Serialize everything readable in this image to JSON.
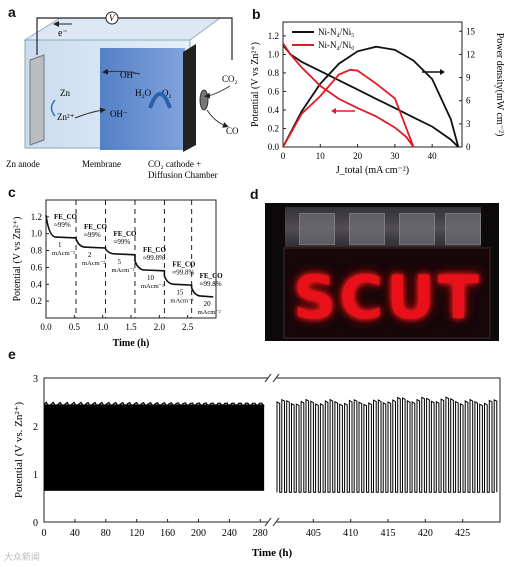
{
  "panels": {
    "a": "a",
    "b": "b",
    "c": "c",
    "d": "d",
    "e": "e"
  },
  "schematic": {
    "electron": "e⁻",
    "voltmeter": "V",
    "zn": "Zn",
    "zn2": "Zn²⁺",
    "oh_top": "OH⁻",
    "oh_mid": "OH⁻",
    "h2o": "H₂O",
    "o2": "O₂",
    "co2": "CO₂",
    "co": "CO",
    "zn_anode": "Zn anode",
    "membrane": "Membrane",
    "cathode_line1": "CO₂ cathode +",
    "cathode_line2": "Diffusion Chamber"
  },
  "photo": {
    "word": "SCUT"
  },
  "watermark": "大众新闻",
  "chart_data": [
    {
      "id": "b",
      "type": "line",
      "xlabel": "J_total (mA cm⁻²)",
      "ylabel": "Potential (V vs Zn²⁺)",
      "ylabel_right": "Power density(mW cm⁻²)",
      "xlim": [
        0,
        48
      ],
      "ylim": [
        0,
        1.35
      ],
      "ylim_right": [
        0,
        16.2
      ],
      "xticks": [
        0,
        10,
        20,
        30,
        40
      ],
      "yticks": [
        0.0,
        0.2,
        0.4,
        0.6,
        0.8,
        1.0,
        1.2
      ],
      "yticks_right": [
        0,
        3,
        6,
        9,
        12,
        15
      ],
      "legend": "top-left",
      "series": [
        {
          "name": "Ni-N₄/Ni₅",
          "color": "#111111",
          "axis": "left",
          "x": [
            0,
            2,
            5,
            10,
            15,
            20,
            25,
            30,
            35,
            40,
            45,
            47
          ],
          "y": [
            1.1,
            1.0,
            0.92,
            0.82,
            0.72,
            0.62,
            0.52,
            0.42,
            0.32,
            0.22,
            0.08,
            0.0
          ]
        },
        {
          "name": "Ni-N₄/Ni₅",
          "color": "#111111",
          "axis": "right",
          "x": [
            0,
            5,
            10,
            15,
            20,
            25,
            30,
            35,
            40,
            45,
            47
          ],
          "y": [
            0,
            4.6,
            8.2,
            10.8,
            12.4,
            13.0,
            12.6,
            11.2,
            8.8,
            3.6,
            0
          ]
        },
        {
          "name": "Ni-N₄/Ni₀",
          "color": "#e01b24",
          "axis": "left",
          "x": [
            0,
            2,
            5,
            10,
            15,
            20,
            25,
            30,
            33,
            35
          ],
          "y": [
            1.12,
            1.0,
            0.86,
            0.66,
            0.52,
            0.42,
            0.33,
            0.21,
            0.11,
            0.0
          ]
        },
        {
          "name": "Ni-N₄/Ni₀",
          "color": "#e01b24",
          "axis": "right",
          "x": [
            0,
            5,
            10,
            15,
            18,
            20,
            25,
            30,
            35
          ],
          "y": [
            0,
            4.3,
            6.6,
            9.4,
            10.0,
            9.9,
            8.2,
            6.3,
            0
          ]
        }
      ]
    },
    {
      "id": "c",
      "type": "line",
      "xlabel": "Time (h)",
      "ylabel": "Potential (V vs Zn²⁺)",
      "xlim": [
        0,
        3
      ],
      "ylim": [
        0,
        1.4
      ],
      "xticks": [
        0.0,
        0.5,
        1.0,
        1.5,
        2.0,
        2.5
      ],
      "yticks": [
        0.2,
        0.4,
        0.6,
        0.8,
        1.0,
        1.2
      ],
      "steps": [
        {
          "t0": 0.0,
          "t1": 0.53,
          "start": 1.22,
          "level": 0.96,
          "fe": "FE_CO",
          "fe_val": "≈99%",
          "j": "1",
          "unit": "mAcm⁻²"
        },
        {
          "t0": 0.53,
          "t1": 1.05,
          "start": 0.94,
          "level": 0.84,
          "fe": "FE_CO",
          "fe_val": "≈99%",
          "j": "2",
          "unit": "mAcm⁻²"
        },
        {
          "t0": 1.05,
          "t1": 1.57,
          "start": 0.82,
          "level": 0.76,
          "fe": "FE_CO",
          "fe_val": "≈99%",
          "j": "5",
          "unit": "mAcm⁻²"
        },
        {
          "t0": 1.57,
          "t1": 2.09,
          "start": 0.68,
          "level": 0.57,
          "fe": "FE_CO",
          "fe_val": "≈99.8%",
          "j": "10",
          "unit": "mAcm⁻²"
        },
        {
          "t0": 2.09,
          "t1": 2.57,
          "start": 0.5,
          "level": 0.4,
          "fe": "FE_CO",
          "fe_val": "≈99.8%",
          "j": "15",
          "unit": "mAcm⁻²"
        },
        {
          "t0": 2.57,
          "t1": 2.95,
          "start": 0.36,
          "level": 0.26,
          "fe": "FE_CO",
          "fe_val": "≈99.8%",
          "j": "20",
          "unit": "mAcm⁻²"
        }
      ],
      "dividers": [
        0.53,
        1.05,
        1.57,
        2.09,
        2.57
      ]
    },
    {
      "id": "e",
      "type": "line",
      "xlabel": "Time (h)",
      "ylabel": "Potential (V vs. Zn²⁺)",
      "ylim": [
        0,
        3
      ],
      "yticks": [
        0,
        1,
        2,
        3
      ],
      "segment1": {
        "xlim": [
          0,
          290
        ],
        "xticks": [
          0,
          40,
          80,
          120,
          160,
          200,
          240,
          280
        ],
        "end": 285,
        "high": 2.45,
        "low": 0.65
      },
      "segment2": {
        "xlim": [
          400,
          430
        ],
        "xticks": [
          405,
          410,
          415,
          420,
          425
        ],
        "start": 400,
        "high": 2.5,
        "low": 0.62,
        "cycles": 46
      }
    }
  ]
}
